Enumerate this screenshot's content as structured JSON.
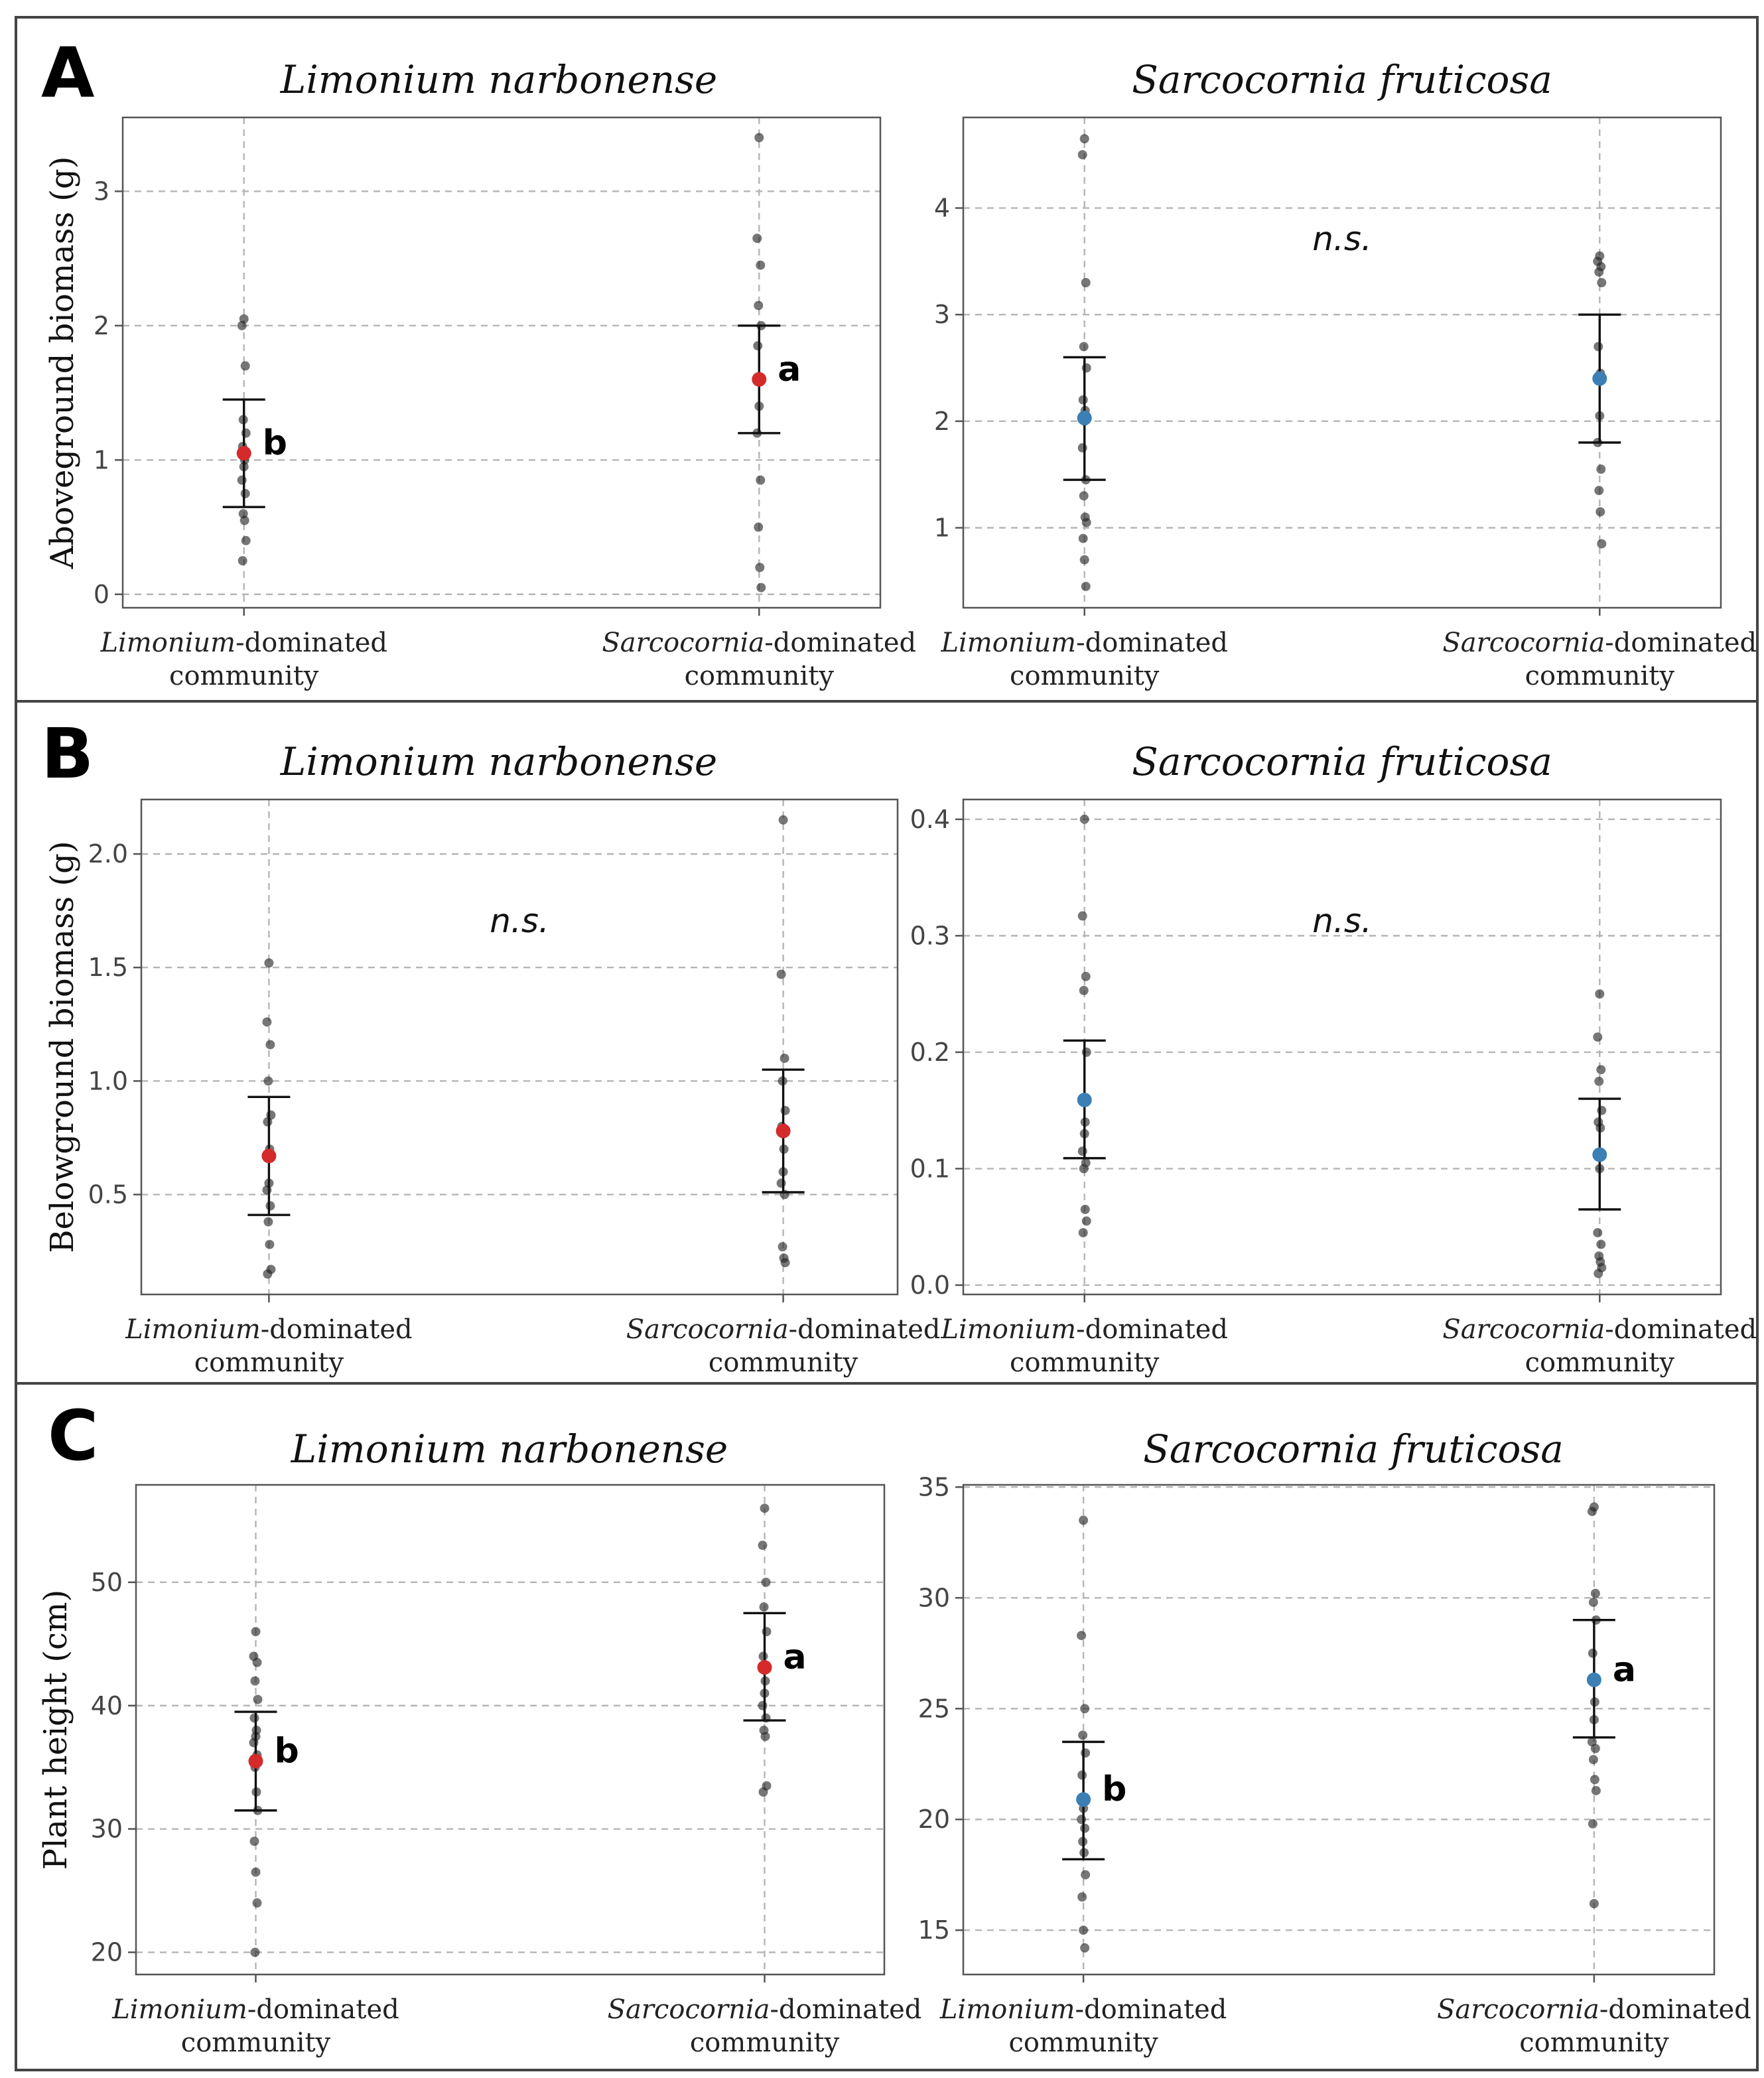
{
  "colors": {
    "red_mean": "#d42a2a",
    "blue_mean": "#3c7fb5",
    "points": "#333333",
    "grid": "#b5b5b5"
  },
  "chart_data": [
    {
      "type": "scatter",
      "row": "A",
      "title": "Limonium narbonense",
      "ylabel": "Aboveground biomass (g)",
      "xlabel": "",
      "ylim": [
        -0.1,
        3.55
      ],
      "yticks": [
        0,
        1,
        2,
        3
      ],
      "categories": [
        {
          "prefix": "Limonium",
          "suffix": "-dominated",
          "line2": "community"
        },
        {
          "prefix": "Sarcocornia",
          "suffix": "-dominated",
          "line2": "community"
        }
      ],
      "mean_color": "red",
      "annotation": "",
      "groups": [
        {
          "points": [
            2.05,
            2.0,
            1.7,
            1.3,
            1.2,
            1.1,
            1.0,
            0.95,
            0.85,
            0.75,
            0.6,
            0.55,
            0.4,
            0.25
          ],
          "mean": 1.05,
          "lower": 0.65,
          "upper": 1.45,
          "letter": "b"
        },
        {
          "points": [
            3.4,
            2.65,
            2.45,
            2.15,
            2.0,
            1.85,
            1.6,
            1.4,
            1.2,
            0.85,
            0.5,
            0.2,
            0.05
          ],
          "mean": 1.6,
          "lower": 1.2,
          "upper": 2.0,
          "letter": "a"
        }
      ]
    },
    {
      "type": "scatter",
      "row": "A",
      "title": "Sarcocornia fruticosa",
      "ylabel": "",
      "xlabel": "",
      "ylim": [
        0.25,
        4.85
      ],
      "yticks": [
        1,
        2,
        3,
        4
      ],
      "categories": [
        {
          "prefix": "Limonium",
          "suffix": "-dominated",
          "line2": "community"
        },
        {
          "prefix": "Sarcocornia",
          "suffix": "-dominated",
          "line2": "community"
        }
      ],
      "mean_color": "blue",
      "annotation": "n.s.",
      "groups": [
        {
          "points": [
            4.65,
            4.5,
            3.3,
            2.7,
            2.5,
            2.2,
            2.1,
            2.0,
            1.75,
            1.45,
            1.3,
            1.1,
            1.05,
            0.9,
            0.7,
            0.45
          ],
          "mean": 2.03,
          "lower": 1.45,
          "upper": 2.6,
          "letter": ""
        },
        {
          "points": [
            3.55,
            3.5,
            3.45,
            3.4,
            3.3,
            2.7,
            2.45,
            2.05,
            1.8,
            1.55,
            1.35,
            1.15,
            0.85
          ],
          "mean": 2.4,
          "lower": 1.8,
          "upper": 3.0,
          "letter": ""
        }
      ]
    },
    {
      "type": "scatter",
      "row": "B",
      "title": "Limonium narbonense",
      "ylabel": "Belowground biomass (g)",
      "xlabel": "",
      "ylim": [
        0.06,
        2.24
      ],
      "yticks": [
        "0.5",
        "1.0",
        "1.5",
        "2.0"
      ],
      "categories": [
        {
          "prefix": "Limonium",
          "suffix": "-dominated",
          "line2": "community"
        },
        {
          "prefix": "Sarcocornia",
          "suffix": "-dominated",
          "line2": "community"
        }
      ],
      "mean_color": "red",
      "annotation": "n.s.",
      "groups": [
        {
          "points": [
            1.52,
            1.26,
            1.16,
            1.0,
            0.85,
            0.82,
            0.7,
            0.55,
            0.52,
            0.45,
            0.38,
            0.28,
            0.17,
            0.15
          ],
          "mean": 0.67,
          "lower": 0.41,
          "upper": 0.93,
          "letter": ""
        },
        {
          "points": [
            2.15,
            1.47,
            1.1,
            1.0,
            0.87,
            0.8,
            0.7,
            0.6,
            0.55,
            0.5,
            0.27,
            0.22,
            0.2
          ],
          "mean": 0.78,
          "lower": 0.51,
          "upper": 1.05,
          "letter": ""
        }
      ]
    },
    {
      "type": "scatter",
      "row": "B",
      "title": "Sarcocornia fruticosa",
      "ylabel": "",
      "xlabel": "",
      "ylim": [
        -0.008,
        0.417
      ],
      "yticks": [
        "0.0",
        "0.1",
        "0.2",
        "0.3",
        "0.4"
      ],
      "categories": [
        {
          "prefix": "Limonium",
          "suffix": "-dominated",
          "line2": "community"
        },
        {
          "prefix": "Sarcocornia",
          "suffix": "-dominated",
          "line2": "community"
        }
      ],
      "mean_color": "blue",
      "annotation": "n.s.",
      "groups": [
        {
          "points": [
            0.4,
            0.317,
            0.265,
            0.253,
            0.2,
            0.16,
            0.14,
            0.13,
            0.115,
            0.105,
            0.1,
            0.065,
            0.055,
            0.045
          ],
          "mean": 0.159,
          "lower": 0.109,
          "upper": 0.21,
          "letter": ""
        },
        {
          "points": [
            0.25,
            0.213,
            0.185,
            0.175,
            0.15,
            0.14,
            0.135,
            0.1,
            0.045,
            0.035,
            0.025,
            0.02,
            0.015,
            0.01
          ],
          "mean": 0.112,
          "lower": 0.065,
          "upper": 0.16,
          "letter": ""
        }
      ]
    },
    {
      "type": "scatter",
      "row": "C",
      "title": "Limonium narbonense",
      "ylabel": "Plant height (cm)",
      "xlabel": "",
      "ylim": [
        18.2,
        57.9
      ],
      "yticks": [
        20,
        30,
        40,
        50
      ],
      "categories": [
        {
          "prefix": "Limonium",
          "suffix": "-dominated",
          "line2": "community"
        },
        {
          "prefix": "Sarcocornia",
          "suffix": "-dominated",
          "line2": "community"
        }
      ],
      "mean_color": "red",
      "annotation": "",
      "groups": [
        {
          "points": [
            46,
            44,
            43.5,
            42,
            40.5,
            39,
            38,
            37.5,
            37,
            36,
            35,
            33,
            31.5,
            29,
            26.5,
            24,
            20
          ],
          "mean": 35.5,
          "lower": 31.5,
          "upper": 39.5,
          "letter": "b"
        },
        {
          "points": [
            56,
            53,
            50,
            48,
            46,
            44,
            42,
            41,
            40,
            39,
            38,
            37.5,
            33.5,
            33
          ],
          "mean": 43.1,
          "lower": 38.8,
          "upper": 47.5,
          "letter": "a"
        }
      ]
    },
    {
      "type": "scatter",
      "row": "C",
      "title": "Sarcocornia fruticosa",
      "ylabel": "",
      "xlabel": "",
      "ylim": [
        13.0,
        35.1
      ],
      "yticks": [
        15,
        20,
        25,
        30,
        35
      ],
      "categories": [
        {
          "prefix": "Limonium",
          "suffix": "-dominated",
          "line2": "community"
        },
        {
          "prefix": "Sarcocornia",
          "suffix": "-dominated",
          "line2": "community"
        }
      ],
      "mean_color": "blue",
      "annotation": "",
      "groups": [
        {
          "points": [
            33.5,
            28.3,
            25,
            23.8,
            23,
            22,
            21,
            20.5,
            20,
            19.6,
            19,
            18.5,
            17.5,
            16.5,
            15,
            14.2
          ],
          "mean": 20.9,
          "lower": 18.2,
          "upper": 23.5,
          "letter": "b"
        },
        {
          "points": [
            34.1,
            33.9,
            30.2,
            29.8,
            29,
            27.5,
            25.3,
            24.5,
            23.5,
            23.2,
            22.7,
            21.8,
            21.3,
            19.8,
            16.2
          ],
          "mean": 26.3,
          "lower": 23.7,
          "upper": 29.0,
          "letter": "a"
        }
      ]
    }
  ]
}
